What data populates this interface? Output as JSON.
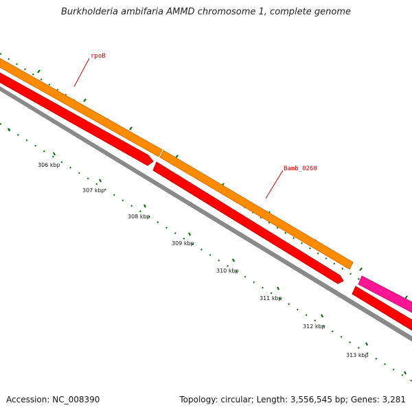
{
  "title": "Burkholderia ambifaria AMMD chromosome 1, complete genome",
  "footer": {
    "accession": "Accession: NC_008390",
    "summary": "Topology: circular; Length: 3,556,545 bp; Genes: 3,281"
  },
  "ticks": [
    "306 kbp",
    "307 kbp",
    "308 kbp",
    "309 kbp",
    "310 kbp",
    "311 kbp",
    "312 kbp",
    "313 kbp"
  ],
  "genes": [
    "rpoB",
    "Bamb_0260"
  ],
  "colors": {
    "cds_forward": "#ff8c00",
    "cds_reverse": "#ff0000",
    "rna": "#ff1493",
    "backbone": "#888888",
    "gc_ticks": "#007700",
    "gene_label": "#cc0000"
  }
}
